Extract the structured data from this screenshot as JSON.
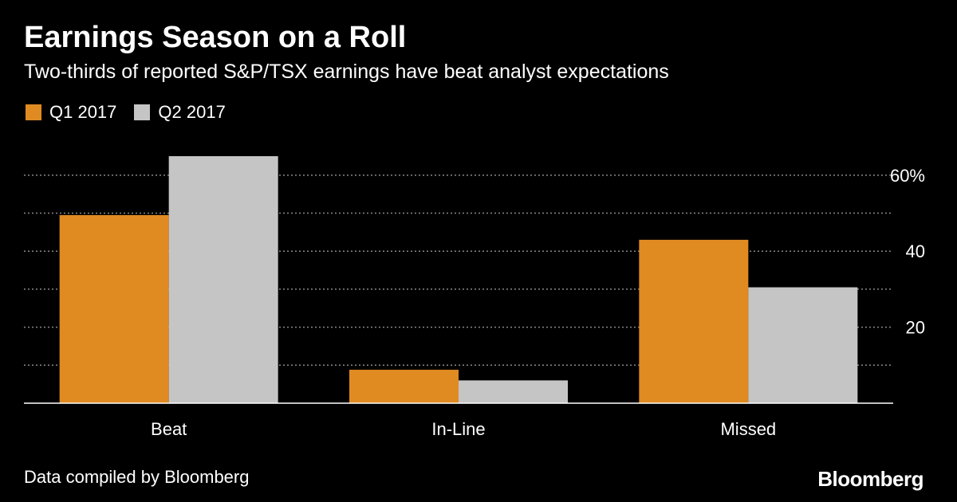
{
  "header": {
    "title": "Earnings Season on a Roll",
    "subtitle": "Two-thirds of reported S&P/TSX earnings have beat analyst expectations"
  },
  "footer": {
    "source": "Data compiled by Bloomberg",
    "brand": "Bloomberg"
  },
  "colors": {
    "q1": "#E08A22",
    "q2": "#C5C5C5",
    "background": "#000000",
    "grid": "#888888",
    "axis": "#FFFFFF",
    "text": "#FFFFFF"
  },
  "chart_data": {
    "type": "bar",
    "title": "Earnings Season on a Roll",
    "subtitle": "Two-thirds of reported S&P/TSX earnings have beat analyst expectations",
    "categories": [
      "Beat",
      "In-Line",
      "Missed"
    ],
    "series": [
      {
        "name": "Q1 2017",
        "values": [
          49.5,
          8.8,
          43
        ]
      },
      {
        "name": "Q2 2017",
        "values": [
          65,
          6,
          30.5
        ]
      }
    ],
    "ylim": [
      0,
      65
    ],
    "yticks": [
      20,
      40,
      60
    ],
    "ytick_labels": [
      "20",
      "40",
      "60%"
    ],
    "gridlines": [
      10,
      20,
      30,
      40,
      50,
      60
    ],
    "grid": true,
    "axis_side": "right",
    "legend": "top-left",
    "xlabel": "",
    "ylabel": ""
  }
}
